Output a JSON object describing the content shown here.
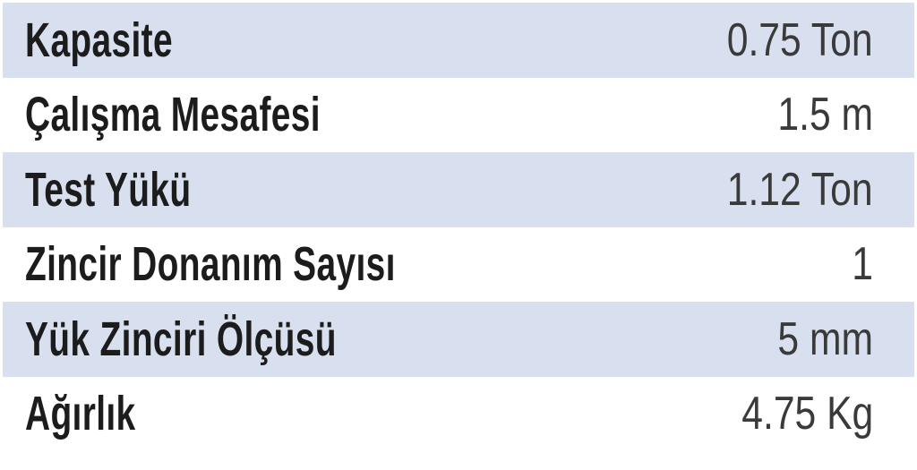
{
  "colors": {
    "shaded_row": "#d8e0f0",
    "label_text": "#1c1c1c",
    "value_text": "#3a3a3a"
  },
  "rows": [
    {
      "label": "Kapasite",
      "value": "0.75 Ton"
    },
    {
      "label": "Çalışma Mesafesi",
      "value": "1.5 m"
    },
    {
      "label": "Test Yükü",
      "value": "1.12 Ton"
    },
    {
      "label": "Zincir Donanım Sayısı",
      "value": "1"
    },
    {
      "label": "Yük Zinciri Ölçüsü",
      "value": "5 mm"
    },
    {
      "label": "Ağırlık",
      "value": "4.75 Kg"
    }
  ]
}
